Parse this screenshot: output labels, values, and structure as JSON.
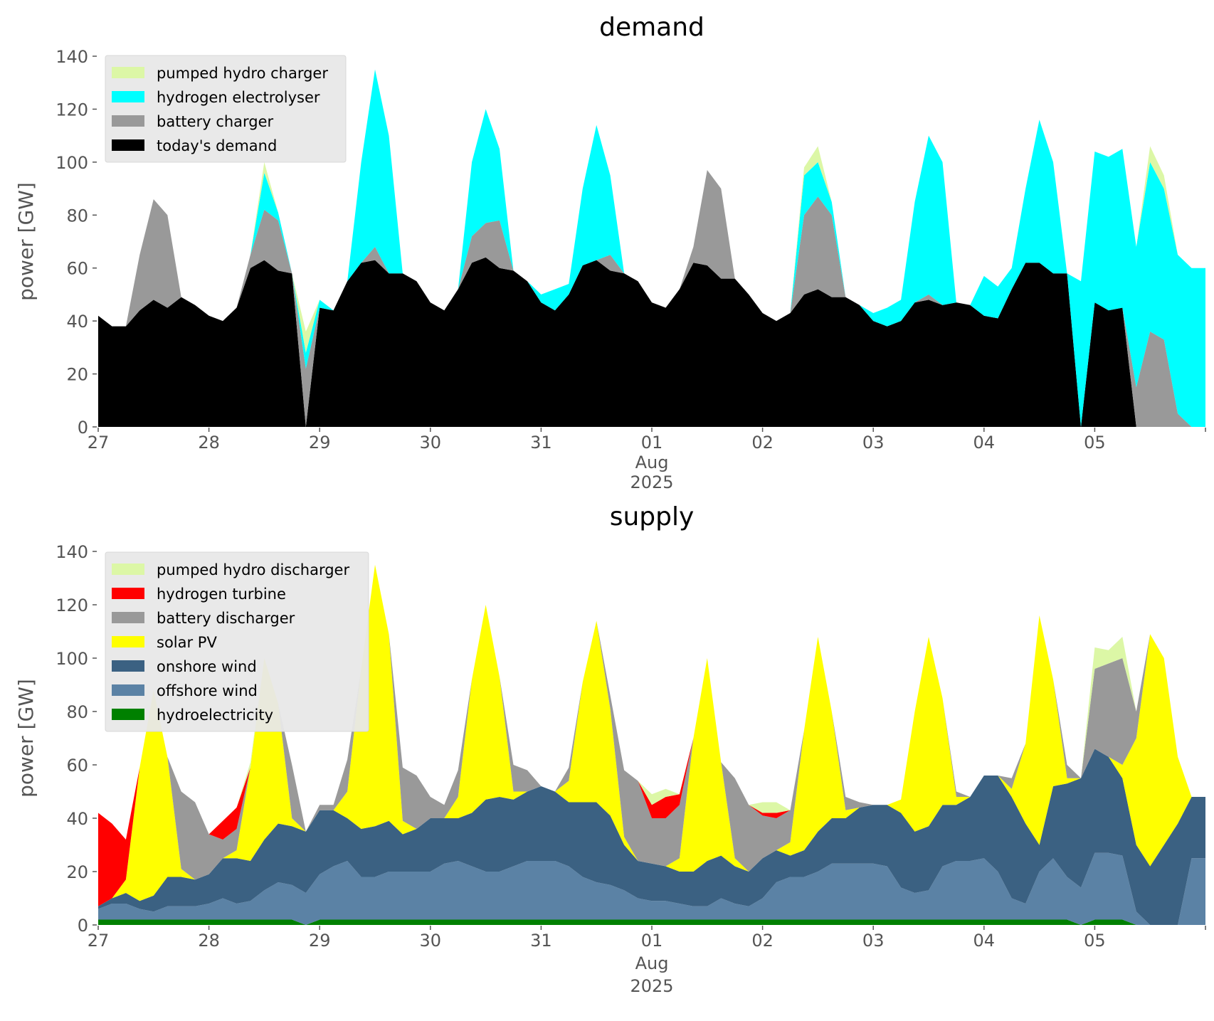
{
  "chart_data": [
    {
      "type": "area",
      "stacked": true,
      "title": "demand",
      "ylabel": "power [GW]",
      "xlabel": "",
      "ylim": [
        0,
        140
      ],
      "yticks": [
        0,
        20,
        40,
        60,
        80,
        100,
        120,
        140
      ],
      "x_start": "2025-07-27 00:00",
      "x_step_hours": 3,
      "xlim": [
        "2025-07-27",
        "2025-08-06"
      ],
      "xtick_labels": [
        "27",
        "28",
        "29",
        "30",
        "31",
        "01",
        "02",
        "03",
        "04",
        "05"
      ],
      "xtick_sublabel": [
        "Aug",
        "2025"
      ],
      "legend_position": "top-left",
      "grid": false,
      "series": [
        {
          "name": "today's demand",
          "color": "#000000",
          "values": [
            42,
            38,
            38,
            44,
            48,
            45,
            49,
            46,
            42,
            40,
            45,
            60,
            63,
            59,
            58,
            0,
            45,
            44,
            55,
            62,
            63,
            58,
            58,
            55,
            47,
            44,
            52,
            62,
            64,
            60,
            59,
            55,
            47,
            44,
            50,
            61,
            63,
            59,
            58,
            55,
            47,
            45,
            52,
            62,
            61,
            56,
            56,
            50,
            43,
            40,
            43,
            50,
            52,
            49,
            49,
            46,
            40,
            38,
            40,
            47,
            48,
            46,
            47,
            46,
            42,
            41,
            52,
            62,
            62,
            58,
            58,
            0,
            47,
            44,
            45,
            0,
            0,
            0,
            0,
            0
          ]
        },
        {
          "name": "battery charger",
          "color": "#999999",
          "values": [
            0,
            0,
            0,
            21,
            38,
            35,
            0,
            0,
            0,
            0,
            0,
            5,
            19,
            19,
            0,
            22,
            0,
            0,
            0,
            0,
            5,
            0,
            0,
            0,
            0,
            0,
            0,
            10,
            13,
            18,
            0,
            0,
            0,
            0,
            0,
            0,
            0,
            6,
            0,
            0,
            0,
            0,
            0,
            6,
            36,
            34,
            0,
            0,
            0,
            0,
            0,
            30,
            35,
            31,
            0,
            0,
            0,
            0,
            0,
            0,
            2,
            0,
            0,
            0,
            0,
            0,
            0,
            0,
            0,
            0,
            0,
            0,
            0,
            0,
            0,
            15,
            36,
            33,
            5,
            0
          ]
        },
        {
          "name": "hydrogen electrolyser",
          "color": "#00ffff",
          "values": [
            0,
            0,
            0,
            0,
            0,
            0,
            0,
            0,
            0,
            0,
            0,
            0,
            14,
            3,
            0,
            6,
            3,
            0,
            0,
            38,
            67,
            52,
            0,
            0,
            0,
            0,
            0,
            28,
            43,
            27,
            0,
            0,
            3,
            8,
            4,
            29,
            51,
            30,
            0,
            0,
            0,
            0,
            0,
            0,
            0,
            0,
            0,
            0,
            0,
            0,
            0,
            15,
            13,
            5,
            0,
            0,
            3,
            7,
            8,
            38,
            60,
            54,
            0,
            0,
            15,
            12,
            8,
            28,
            54,
            42,
            0,
            55,
            57,
            58,
            60,
            53,
            64,
            57,
            60,
            60
          ]
        },
        {
          "name": "pumped hydro charger",
          "color": "#dcf7a6",
          "values": [
            0,
            0,
            0,
            0,
            0,
            0,
            0,
            0,
            0,
            0,
            0,
            0,
            4,
            0,
            0,
            8,
            0,
            0,
            0,
            0,
            0,
            0,
            0,
            0,
            0,
            0,
            0,
            0,
            0,
            0,
            0,
            0,
            0,
            0,
            0,
            0,
            0,
            0,
            0,
            0,
            0,
            0,
            0,
            0,
            0,
            0,
            0,
            0,
            0,
            0,
            0,
            3,
            6,
            0,
            0,
            0,
            0,
            0,
            0,
            0,
            0,
            0,
            0,
            0,
            0,
            0,
            0,
            0,
            0,
            0,
            0,
            0,
            0,
            0,
            0,
            0,
            6,
            5,
            0,
            0
          ]
        }
      ]
    },
    {
      "type": "area",
      "stacked": true,
      "title": "supply",
      "ylabel": "power [GW]",
      "xlabel": "",
      "ylim": [
        0,
        140
      ],
      "yticks": [
        0,
        20,
        40,
        60,
        80,
        100,
        120,
        140
      ],
      "x_start": "2025-07-27 00:00",
      "x_step_hours": 3,
      "xlim": [
        "2025-07-27",
        "2025-08-06"
      ],
      "xtick_labels": [
        "27",
        "28",
        "29",
        "30",
        "31",
        "01",
        "02",
        "03",
        "04",
        "05"
      ],
      "xtick_sublabel": [
        "Aug",
        "2025"
      ],
      "legend_position": "top-left",
      "grid": false,
      "series": [
        {
          "name": "hydroelectricity",
          "color": "#008000",
          "values": [
            2,
            2,
            2,
            2,
            2,
            2,
            2,
            2,
            2,
            2,
            2,
            2,
            2,
            2,
            2,
            0,
            2,
            2,
            2,
            2,
            2,
            2,
            2,
            2,
            2,
            2,
            2,
            2,
            2,
            2,
            2,
            2,
            2,
            2,
            2,
            2,
            2,
            2,
            2,
            2,
            2,
            2,
            2,
            2,
            2,
            2,
            2,
            2,
            2,
            2,
            2,
            2,
            2,
            2,
            2,
            2,
            2,
            2,
            2,
            2,
            2,
            2,
            2,
            2,
            2,
            2,
            2,
            2,
            2,
            2,
            2,
            0,
            2,
            2,
            2,
            0,
            0,
            0,
            0,
            0
          ]
        },
        {
          "name": "offshore wind",
          "color": "#5b82a5",
          "values": [
            4,
            6,
            6,
            4,
            3,
            5,
            5,
            5,
            6,
            8,
            6,
            7,
            11,
            14,
            13,
            12,
            17,
            20,
            22,
            16,
            16,
            18,
            18,
            18,
            18,
            21,
            22,
            20,
            18,
            18,
            20,
            22,
            22,
            22,
            20,
            16,
            14,
            13,
            11,
            8,
            7,
            7,
            6,
            5,
            5,
            8,
            6,
            5,
            8,
            14,
            16,
            16,
            18,
            21,
            21,
            21,
            21,
            20,
            12,
            10,
            11,
            20,
            22,
            22,
            23,
            18,
            8,
            6,
            18,
            23,
            16,
            14,
            25,
            25,
            24,
            5,
            0,
            0,
            0,
            25
          ]
        },
        {
          "name": "onshore wind",
          "color": "#3b6182",
          "values": [
            1,
            2,
            4,
            3,
            6,
            11,
            11,
            10,
            11,
            15,
            17,
            15,
            19,
            22,
            22,
            23,
            24,
            21,
            16,
            18,
            19,
            19,
            14,
            16,
            20,
            17,
            16,
            20,
            27,
            28,
            25,
            26,
            28,
            26,
            24,
            28,
            30,
            26,
            17,
            14,
            14,
            13,
            12,
            13,
            17,
            16,
            14,
            13,
            15,
            12,
            8,
            10,
            15,
            17,
            17,
            21,
            22,
            23,
            28,
            23,
            24,
            23,
            21,
            24,
            31,
            36,
            38,
            30,
            10,
            27,
            35,
            41,
            39,
            36,
            29,
            25,
            22,
            30,
            38,
            23
          ]
        },
        {
          "name": "solar PV",
          "color": "#ffff00",
          "values": [
            0,
            0,
            5,
            50,
            77,
            45,
            3,
            0,
            0,
            0,
            3,
            35,
            68,
            45,
            3,
            0,
            0,
            0,
            10,
            60,
            98,
            70,
            5,
            0,
            0,
            0,
            8,
            50,
            73,
            45,
            3,
            0,
            0,
            0,
            8,
            45,
            68,
            40,
            3,
            0,
            0,
            0,
            5,
            50,
            76,
            35,
            3,
            0,
            0,
            0,
            5,
            45,
            73,
            40,
            3,
            0,
            0,
            0,
            5,
            45,
            71,
            40,
            3,
            0,
            0,
            0,
            3,
            30,
            86,
            40,
            2,
            0,
            0,
            0,
            5,
            40,
            87,
            70,
            25,
            0
          ]
        },
        {
          "name": "battery discharger",
          "color": "#999999",
          "values": [
            0,
            0,
            0,
            0,
            0,
            0,
            29,
            29,
            15,
            7,
            8,
            0,
            0,
            0,
            20,
            0,
            2,
            2,
            12,
            0,
            0,
            0,
            20,
            20,
            8,
            5,
            10,
            0,
            0,
            0,
            10,
            8,
            0,
            0,
            5,
            0,
            0,
            5,
            25,
            30,
            17,
            18,
            20,
            0,
            0,
            0,
            30,
            25,
            16,
            12,
            12,
            0,
            0,
            0,
            5,
            2,
            0,
            0,
            0,
            0,
            0,
            0,
            2,
            0,
            0,
            0,
            4,
            0,
            0,
            0,
            5,
            0,
            30,
            35,
            40,
            10,
            0,
            0,
            0,
            0
          ]
        },
        {
          "name": "hydrogen turbine",
          "color": "#ff0000",
          "values": [
            35,
            28,
            15,
            0,
            0,
            0,
            0,
            0,
            0,
            7,
            8,
            0,
            0,
            0,
            0,
            0,
            0,
            0,
            0,
            0,
            0,
            0,
            0,
            0,
            0,
            0,
            0,
            0,
            0,
            0,
            0,
            0,
            0,
            0,
            0,
            0,
            0,
            0,
            0,
            0,
            5,
            8,
            4,
            0,
            0,
            0,
            0,
            0,
            1,
            2,
            0,
            0,
            0,
            0,
            0,
            0,
            0,
            0,
            0,
            0,
            0,
            0,
            0,
            0,
            0,
            0,
            0,
            0,
            0,
            0,
            0,
            0,
            0,
            0,
            0,
            0,
            0,
            0,
            0,
            0
          ]
        },
        {
          "name": "pumped hydro discharger",
          "color": "#dcf7a6",
          "values": [
            0,
            0,
            0,
            0,
            0,
            0,
            0,
            0,
            0,
            0,
            0,
            2,
            0,
            0,
            0,
            0,
            0,
            0,
            0,
            0,
            0,
            0,
            0,
            0,
            0,
            0,
            0,
            0,
            0,
            0,
            0,
            0,
            0,
            0,
            0,
            0,
            0,
            0,
            0,
            0,
            4,
            3,
            0,
            0,
            0,
            0,
            0,
            0,
            4,
            4,
            0,
            0,
            0,
            0,
            0,
            0,
            0,
            0,
            0,
            0,
            0,
            0,
            0,
            0,
            0,
            0,
            0,
            0,
            0,
            0,
            0,
            0,
            8,
            5,
            8,
            0,
            0,
            0,
            0,
            0
          ]
        }
      ]
    }
  ]
}
